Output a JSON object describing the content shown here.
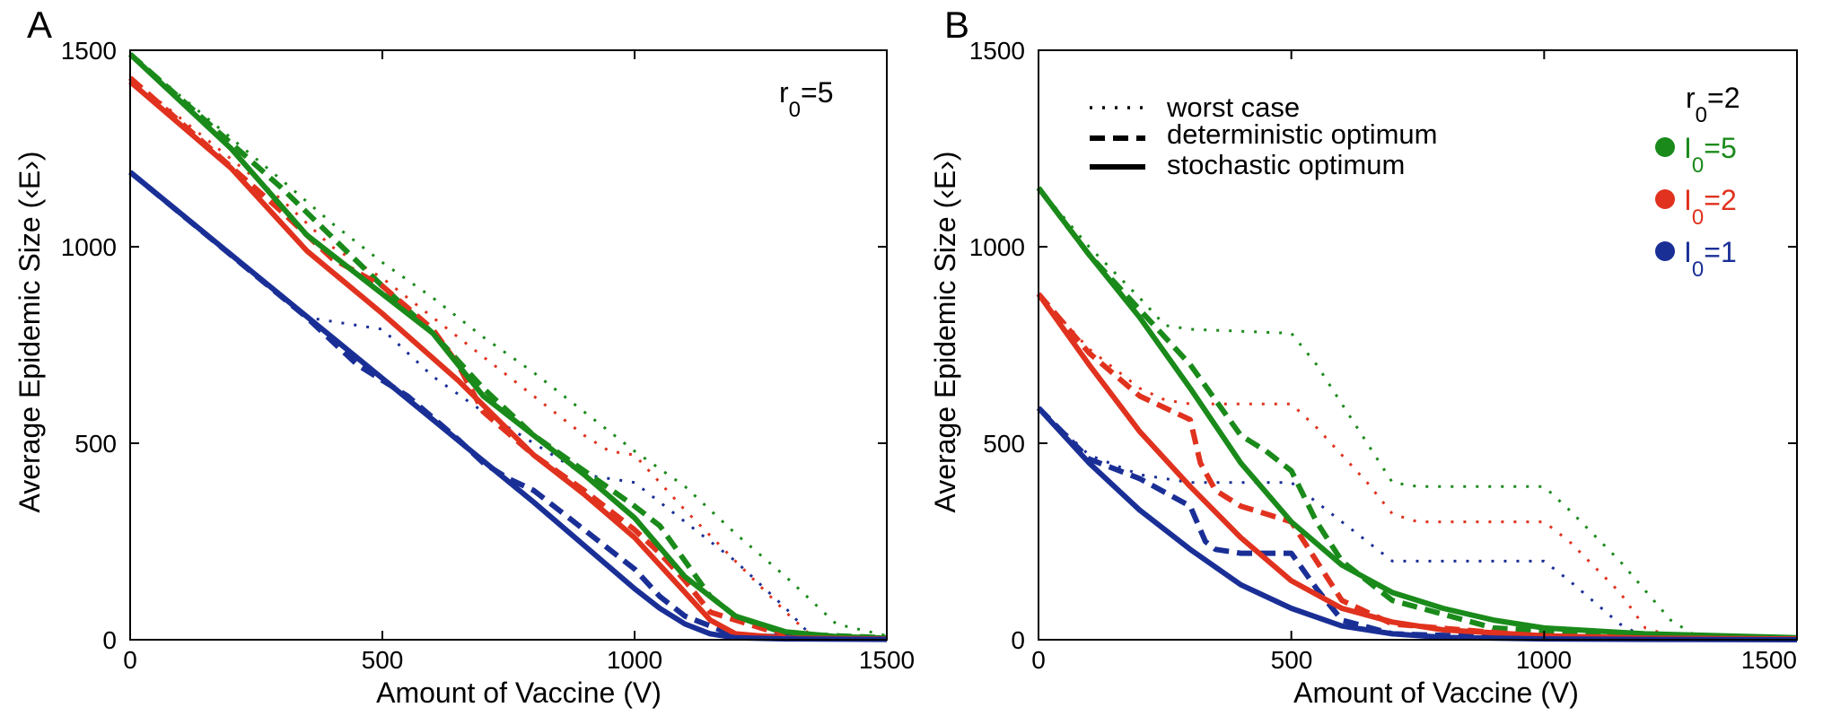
{
  "colors": {
    "green": "#1a8a1a",
    "red": "#e0321e",
    "blue": "#1a2f96",
    "axis": "#000000"
  },
  "chart_data": [
    {
      "type": "line",
      "panel_label": "A",
      "xlabel": "Amount of Vaccine (V)",
      "ylabel": "Average Epidemic Size (‹E›)",
      "xlim": [
        0,
        1500
      ],
      "ylim": [
        0,
        1500
      ],
      "xticks": [
        "0",
        "500",
        "1000",
        "1500"
      ],
      "yticks": [
        "0",
        "500",
        "1000",
        "1500"
      ],
      "annotation": {
        "r": "r",
        "sub": "0",
        "eq": "=5"
      },
      "series": [
        {
          "name": "I0=5 worst case",
          "color": "green",
          "style": "worst",
          "x": [
            0,
            300,
            400,
            500,
            600,
            700,
            800,
            900,
            1000,
            1100,
            1200,
            1300,
            1400,
            1500
          ],
          "y": [
            1490,
            1170,
            1060,
            960,
            870,
            770,
            680,
            580,
            480,
            390,
            270,
            160,
            40,
            10
          ]
        },
        {
          "name": "I0=5 deterministic optimum",
          "color": "green",
          "style": "deterministic",
          "x": [
            0,
            300,
            500,
            600,
            700,
            800,
            900,
            1000,
            1050,
            1100,
            1150,
            1200,
            1300,
            1500
          ],
          "y": [
            1490,
            1150,
            900,
            780,
            640,
            520,
            430,
            340,
            290,
            200,
            110,
            60,
            15,
            5
          ]
        },
        {
          "name": "I0=5 stochastic optimum",
          "color": "green",
          "style": "stochastic",
          "x": [
            0,
            200,
            350,
            500,
            600,
            700,
            800,
            900,
            1000,
            1100,
            1200,
            1300,
            1400,
            1500
          ],
          "y": [
            1490,
            1250,
            1030,
            880,
            780,
            620,
            520,
            420,
            310,
            160,
            60,
            20,
            8,
            4
          ]
        },
        {
          "name": "I0=2 worst case",
          "color": "red",
          "style": "worst",
          "x": [
            0,
            300,
            400,
            500,
            600,
            700,
            800,
            900,
            950,
            1000,
            1100,
            1200,
            1300,
            1350,
            1500
          ],
          "y": [
            1430,
            1120,
            1000,
            920,
            820,
            720,
            620,
            520,
            480,
            470,
            330,
            200,
            70,
            10,
            5
          ]
        },
        {
          "name": "I0=2 deterministic optimum",
          "color": "red",
          "style": "deterministic",
          "x": [
            0,
            300,
            400,
            500,
            600,
            650,
            700,
            800,
            900,
            1000,
            1050,
            1100,
            1150,
            1300,
            1500
          ],
          "y": [
            1430,
            1090,
            970,
            900,
            790,
            700,
            580,
            470,
            380,
            280,
            220,
            150,
            70,
            10,
            4
          ]
        },
        {
          "name": "I0=2 stochastic optimum",
          "color": "red",
          "style": "stochastic",
          "x": [
            0,
            200,
            350,
            500,
            650,
            800,
            900,
            1000,
            1100,
            1150,
            1200,
            1300,
            1500
          ],
          "y": [
            1420,
            1200,
            990,
            830,
            660,
            470,
            370,
            260,
            120,
            50,
            15,
            4,
            2
          ]
        },
        {
          "name": "I0=1 worst case",
          "color": "blue",
          "style": "worst",
          "x": [
            0,
            350,
            500,
            600,
            700,
            800,
            900,
            1000,
            1100,
            1200,
            1300,
            1350,
            1500
          ],
          "y": [
            1190,
            820,
            790,
            670,
            580,
            500,
            420,
            400,
            300,
            200,
            80,
            10,
            3
          ]
        },
        {
          "name": "I0=1 deterministic optimum",
          "color": "blue",
          "style": "deterministic",
          "x": [
            0,
            350,
            450,
            550,
            650,
            700,
            750,
            800,
            900,
            1000,
            1050,
            1100,
            1200,
            1500
          ],
          "y": [
            1190,
            820,
            700,
            620,
            510,
            450,
            410,
            380,
            280,
            180,
            110,
            60,
            10,
            3
          ]
        },
        {
          "name": "I0=1 stochastic optimum",
          "color": "blue",
          "style": "stochastic",
          "x": [
            0,
            200,
            400,
            600,
            800,
            900,
            1000,
            1050,
            1100,
            1150,
            1200,
            1300,
            1500
          ],
          "y": [
            1190,
            980,
            770,
            560,
            350,
            240,
            130,
            80,
            40,
            15,
            5,
            2,
            1
          ]
        }
      ]
    },
    {
      "type": "line",
      "panel_label": "B",
      "xlabel": "Amount of Vaccine (V)",
      "ylabel": "Average Epidemic Size (‹E›)",
      "xlim": [
        0,
        1500
      ],
      "ylim": [
        0,
        1500
      ],
      "xticks": [
        "0",
        "500",
        "1000",
        "1500"
      ],
      "yticks": [
        "0",
        "500",
        "1000",
        "1500"
      ],
      "annotation": {
        "r": "r",
        "sub": "0",
        "eq": "=2"
      },
      "legend_styles": [
        {
          "label": "worst case",
          "style": "worst"
        },
        {
          "label": "deterministic optimum",
          "style": "deterministic"
        },
        {
          "label": "stochastic optimum",
          "style": "stochastic"
        }
      ],
      "legend_colors": [
        {
          "color": "green",
          "main": "I",
          "sub": "0",
          "eq": "=5"
        },
        {
          "color": "red",
          "main": "I",
          "sub": "0",
          "eq": "=2"
        },
        {
          "color": "blue",
          "main": "I",
          "sub": "0",
          "eq": "=1"
        }
      ],
      "series": [
        {
          "name": "I0=5 worst case",
          "color": "green",
          "style": "worst",
          "x": [
            0,
            100,
            200,
            250,
            300,
            500,
            550,
            650,
            700,
            750,
            1000,
            1050,
            1150,
            1250,
            1300,
            1500
          ],
          "y": [
            1150,
            1000,
            870,
            800,
            790,
            780,
            700,
            500,
            400,
            390,
            390,
            330,
            200,
            50,
            10,
            5
          ]
        },
        {
          "name": "I0=5 deterministic optimum",
          "color": "green",
          "style": "deterministic",
          "x": [
            0,
            100,
            200,
            300,
            400,
            450,
            500,
            550,
            600,
            700,
            900,
            1200,
            1500
          ],
          "y": [
            1150,
            980,
            840,
            700,
            520,
            480,
            430,
            300,
            200,
            100,
            30,
            8,
            3
          ]
        },
        {
          "name": "I0=5 stochastic optimum",
          "color": "green",
          "style": "stochastic",
          "x": [
            0,
            100,
            200,
            300,
            400,
            500,
            600,
            700,
            800,
            900,
            1000,
            1200,
            1500
          ],
          "y": [
            1150,
            980,
            820,
            640,
            450,
            300,
            190,
            120,
            80,
            50,
            30,
            15,
            5
          ]
        },
        {
          "name": "I0=2 worst case",
          "color": "red",
          "style": "worst",
          "x": [
            0,
            100,
            200,
            250,
            300,
            500,
            550,
            650,
            700,
            750,
            1000,
            1050,
            1150,
            1200,
            1250,
            1500
          ],
          "y": [
            880,
            740,
            640,
            610,
            600,
            600,
            540,
            400,
            320,
            300,
            300,
            250,
            120,
            30,
            10,
            3
          ]
        },
        {
          "name": "I0=2 deterministic optimum",
          "color": "red",
          "style": "deterministic",
          "x": [
            0,
            100,
            200,
            300,
            320,
            350,
            400,
            450,
            500,
            550,
            600,
            700,
            1000,
            1500
          ],
          "y": [
            880,
            730,
            620,
            560,
            450,
            380,
            340,
            320,
            300,
            200,
            100,
            40,
            8,
            2
          ]
        },
        {
          "name": "I0=2 stochastic optimum",
          "color": "red",
          "style": "stochastic",
          "x": [
            0,
            100,
            200,
            300,
            400,
            500,
            600,
            700,
            800,
            1000,
            1200,
            1500
          ],
          "y": [
            880,
            700,
            530,
            390,
            260,
            150,
            80,
            45,
            25,
            10,
            4,
            2
          ]
        },
        {
          "name": "I0=1 worst case",
          "color": "blue",
          "style": "worst",
          "x": [
            0,
            100,
            200,
            250,
            300,
            500,
            550,
            650,
            700,
            750,
            1000,
            1050,
            1150,
            1200,
            1500
          ],
          "y": [
            590,
            470,
            420,
            410,
            400,
            400,
            350,
            250,
            200,
            200,
            200,
            150,
            40,
            5,
            2
          ]
        },
        {
          "name": "I0=1 deterministic optimum",
          "color": "blue",
          "style": "deterministic",
          "x": [
            0,
            100,
            200,
            300,
            330,
            350,
            400,
            450,
            500,
            550,
            600,
            700,
            1000,
            1500
          ],
          "y": [
            590,
            460,
            410,
            340,
            250,
            230,
            220,
            220,
            220,
            130,
            50,
            15,
            3,
            1
          ]
        },
        {
          "name": "I0=1 stochastic optimum",
          "color": "blue",
          "style": "stochastic",
          "x": [
            0,
            100,
            200,
            300,
            400,
            500,
            600,
            700,
            800,
            1000,
            1200,
            1500
          ],
          "y": [
            590,
            450,
            330,
            230,
            140,
            80,
            35,
            15,
            6,
            2,
            1,
            0
          ]
        }
      ]
    }
  ]
}
